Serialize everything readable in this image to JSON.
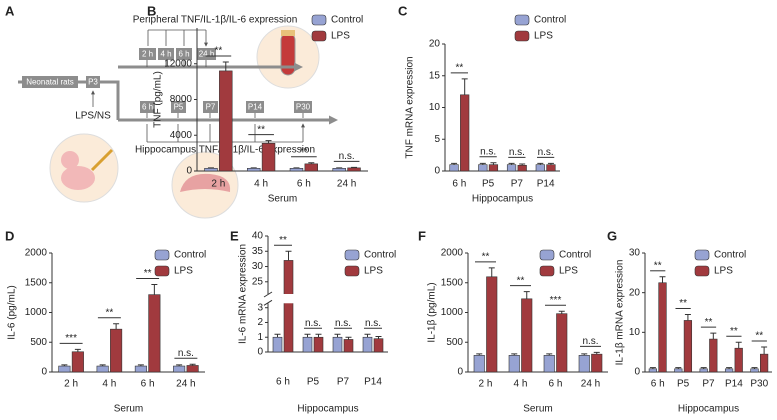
{
  "diagram": {
    "panel": "A",
    "top_label": "Peripheral TNF/IL-1β/IL-6 expression",
    "peripheral_times": [
      "2 h",
      "4 h",
      "6 h",
      "24 h"
    ],
    "start": "Neonatal rats",
    "injection_day": "P3",
    "treatment": "LPS/NS",
    "hippocampus_times": [
      "6 h",
      "P5",
      "P7",
      "P14",
      "P30"
    ],
    "bottom_label": "Hippocampus TNF/IL-1β/IL-6 expression"
  },
  "chart_data": [
    {
      "type": "bar",
      "panel": "B",
      "ylabel": "TNF (pg/mL)",
      "xlabel": "Serum",
      "categories": [
        "2 h",
        "4 h",
        "6 h",
        "24 h"
      ],
      "series": [
        {
          "name": "Control",
          "color": "#97a3d3",
          "values": [
            300,
            300,
            300,
            300
          ],
          "errors": [
            50,
            50,
            50,
            50
          ]
        },
        {
          "name": "LPS",
          "color": "#a13a3e",
          "values": [
            11200,
            3100,
            800,
            350
          ],
          "errors": [
            1000,
            300,
            120,
            60
          ]
        }
      ],
      "significance": [
        "**",
        "**",
        "**",
        "n.s."
      ],
      "ylim": [
        0,
        16000
      ],
      "yticks": [
        0,
        4000,
        8000,
        12000
      ]
    },
    {
      "type": "bar",
      "panel": "C",
      "ylabel": "TNF mRNA expression",
      "xlabel": "Hippocampus",
      "categories": [
        "6 h",
        "P5",
        "P7",
        "P14"
      ],
      "series": [
        {
          "name": "Control",
          "color": "#97a3d3",
          "values": [
            1,
            1,
            1,
            1
          ],
          "errors": [
            0.2,
            0.2,
            0.2,
            0.2
          ]
        },
        {
          "name": "LPS",
          "color": "#a13a3e",
          "values": [
            12,
            1,
            0.9,
            1
          ],
          "errors": [
            2.5,
            0.3,
            0.2,
            0.2
          ]
        }
      ],
      "significance": [
        "**",
        "n.s.",
        "n.s.",
        "n.s."
      ],
      "ylim": [
        0,
        20
      ],
      "yticks": [
        0,
        5,
        10,
        15,
        20
      ]
    },
    {
      "type": "bar",
      "panel": "D",
      "ylabel": "IL-6 (pg/mL)",
      "xlabel": "Serum",
      "categories": [
        "2 h",
        "4 h",
        "6 h",
        "24 h"
      ],
      "series": [
        {
          "name": "Control",
          "color": "#97a3d3",
          "values": [
            100,
            100,
            100,
            100
          ],
          "errors": [
            20,
            20,
            20,
            20
          ]
        },
        {
          "name": "LPS",
          "color": "#a13a3e",
          "values": [
            340,
            720,
            1300,
            110
          ],
          "errors": [
            40,
            90,
            170,
            20
          ]
        }
      ],
      "significance": [
        "***",
        "**",
        "**",
        "n.s."
      ],
      "ylim": [
        0,
        2000
      ],
      "yticks": [
        0,
        500,
        1000,
        1500,
        2000
      ]
    },
    {
      "type": "bar",
      "panel": "E",
      "ylabel": "IL-6 mRNA expression",
      "xlabel": "Hippocampus",
      "categories": [
        "6 h",
        "P5",
        "P7",
        "P14"
      ],
      "series": [
        {
          "name": "Control",
          "color": "#97a3d3",
          "values": [
            1,
            1,
            1,
            1
          ],
          "errors": [
            0.2,
            0.2,
            0.2,
            0.2
          ]
        },
        {
          "name": "LPS",
          "color": "#a13a3e",
          "values": [
            32,
            1,
            0.85,
            0.9
          ],
          "errors": [
            3,
            0.2,
            0.15,
            0.15
          ]
        }
      ],
      "significance": [
        "**",
        "n.s.",
        "n.s.",
        "n.s."
      ],
      "ylim": [
        0,
        40
      ],
      "ybreak": [
        3.3,
        21
      ],
      "yticks": [
        0,
        1,
        2,
        3,
        25,
        30,
        35,
        40
      ]
    },
    {
      "type": "bar",
      "panel": "F",
      "ylabel": "IL-1β (pg/mL)",
      "xlabel": "Serum",
      "categories": [
        "2 h",
        "4 h",
        "6 h",
        "24 h"
      ],
      "series": [
        {
          "name": "Control",
          "color": "#97a3d3",
          "values": [
            280,
            280,
            280,
            280
          ],
          "errors": [
            25,
            25,
            25,
            25
          ]
        },
        {
          "name": "LPS",
          "color": "#a13a3e",
          "values": [
            1600,
            1230,
            980,
            300
          ],
          "errors": [
            150,
            120,
            40,
            30
          ]
        }
      ],
      "significance": [
        "**",
        "**",
        "***",
        "n.s."
      ],
      "ylim": [
        0,
        2000
      ],
      "yticks": [
        0,
        500,
        1000,
        1500,
        2000
      ]
    },
    {
      "type": "bar",
      "panel": "G",
      "ylabel": "IL-1β mRNA expression",
      "xlabel": "Hippocampus",
      "categories": [
        "6 h",
        "P5",
        "P7",
        "P14",
        "P30"
      ],
      "series": [
        {
          "name": "Control",
          "color": "#97a3d3",
          "values": [
            0.8,
            0.8,
            0.8,
            0.8,
            0.8
          ],
          "errors": [
            0.3,
            0.3,
            0.3,
            0.3,
            0.3
          ]
        },
        {
          "name": "LPS",
          "color": "#a13a3e",
          "values": [
            22.5,
            13,
            8.3,
            6,
            4.5
          ],
          "errors": [
            1.5,
            1.5,
            1.5,
            1.5,
            1.8
          ]
        }
      ],
      "significance": [
        "**",
        "**",
        "**",
        "**",
        "**"
      ],
      "ylim": [
        0,
        30
      ],
      "yticks": [
        0,
        10,
        20,
        30
      ]
    }
  ]
}
